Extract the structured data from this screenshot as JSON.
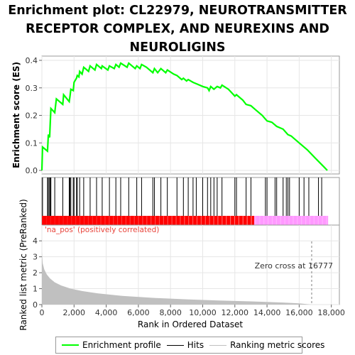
{
  "title": "Enrichment plot: CL22979, NEUROTRANSMITTER RECEPTOR COMPLEX, AND NEUREXINS AND NEUROLIGINS",
  "title_lines": [
    "Enrichment plot: CL22979, NEUROTRANSMITTER",
    "RECEPTOR COMPLEX, AND NEUREXINS AND",
    "NEUROLIGINS"
  ],
  "colors": {
    "es_line": "#00ff00",
    "hits": "#000000",
    "metric_fill": "#c0c0c0",
    "pos_bar": "#ff0000",
    "neg_bar": "#ff99ff",
    "zero_line": "#808080"
  },
  "chart_data": [
    {
      "type": "line",
      "name": "enrichment-profile",
      "ylabel": "Enrichment score (ES)",
      "ylim": [
        0,
        0.4
      ],
      "yticks": [
        0.0,
        0.1,
        0.2,
        0.3,
        0.4
      ],
      "ytick_labels": [
        "0.0",
        "0.1",
        "0.2",
        "0.3",
        "0.4"
      ],
      "xlim": [
        0,
        18500
      ],
      "points": [
        [
          0,
          0.0
        ],
        [
          40,
          0.085
        ],
        [
          350,
          0.07
        ],
        [
          400,
          0.13
        ],
        [
          480,
          0.12
        ],
        [
          520,
          0.175
        ],
        [
          560,
          0.225
        ],
        [
          800,
          0.21
        ],
        [
          900,
          0.26
        ],
        [
          1300,
          0.24
        ],
        [
          1350,
          0.275
        ],
        [
          1700,
          0.25
        ],
        [
          1750,
          0.27
        ],
        [
          1800,
          0.295
        ],
        [
          1950,
          0.29
        ],
        [
          2000,
          0.32
        ],
        [
          2150,
          0.335
        ],
        [
          2200,
          0.345
        ],
        [
          2300,
          0.34
        ],
        [
          2350,
          0.36
        ],
        [
          2500,
          0.35
        ],
        [
          2600,
          0.375
        ],
        [
          2900,
          0.36
        ],
        [
          3000,
          0.38
        ],
        [
          3300,
          0.365
        ],
        [
          3400,
          0.385
        ],
        [
          3700,
          0.37
        ],
        [
          3750,
          0.38
        ],
        [
          4100,
          0.365
        ],
        [
          4200,
          0.38
        ],
        [
          4500,
          0.37
        ],
        [
          4600,
          0.385
        ],
        [
          4800,
          0.375
        ],
        [
          4900,
          0.39
        ],
        [
          5300,
          0.375
        ],
        [
          5400,
          0.39
        ],
        [
          5800,
          0.37
        ],
        [
          5900,
          0.38
        ],
        [
          6100,
          0.37
        ],
        [
          6200,
          0.385
        ],
        [
          6500,
          0.375
        ],
        [
          6900,
          0.355
        ],
        [
          7000,
          0.37
        ],
        [
          7200,
          0.355
        ],
        [
          7400,
          0.37
        ],
        [
          7700,
          0.355
        ],
        [
          7800,
          0.365
        ],
        [
          8200,
          0.35
        ],
        [
          8400,
          0.345
        ],
        [
          8700,
          0.33
        ],
        [
          8800,
          0.335
        ],
        [
          9000,
          0.325
        ],
        [
          9100,
          0.33
        ],
        [
          9400,
          0.32
        ],
        [
          9600,
          0.315
        ],
        [
          10000,
          0.305
        ],
        [
          10300,
          0.3
        ],
        [
          10400,
          0.29
        ],
        [
          10500,
          0.305
        ],
        [
          10700,
          0.295
        ],
        [
          10900,
          0.305
        ],
        [
          11100,
          0.3
        ],
        [
          11200,
          0.31
        ],
        [
          11600,
          0.295
        ],
        [
          12000,
          0.27
        ],
        [
          12100,
          0.275
        ],
        [
          12500,
          0.255
        ],
        [
          12700,
          0.24
        ],
        [
          13000,
          0.235
        ],
        [
          13300,
          0.22
        ],
        [
          13700,
          0.2
        ],
        [
          14000,
          0.18
        ],
        [
          14300,
          0.175
        ],
        [
          14600,
          0.16
        ],
        [
          15000,
          0.15
        ],
        [
          15300,
          0.13
        ],
        [
          15500,
          0.125
        ],
        [
          16000,
          0.1
        ],
        [
          16500,
          0.075
        ],
        [
          17000,
          0.045
        ],
        [
          17500,
          0.015
        ],
        [
          17750,
          0.0
        ]
      ]
    },
    {
      "type": "scatter",
      "name": "hits",
      "xlim": [
        0,
        18500
      ],
      "x": [
        40,
        350,
        400,
        480,
        520,
        560,
        800,
        1300,
        1700,
        1750,
        1800,
        1950,
        2000,
        2150,
        2200,
        2350,
        2600,
        3000,
        3400,
        3750,
        4200,
        4600,
        4900,
        5400,
        5900,
        6200,
        6900,
        7000,
        7400,
        7800,
        8400,
        8800,
        9100,
        9400,
        9600,
        10000,
        10300,
        10500,
        10700,
        10900,
        11200,
        12000,
        12100,
        12700,
        13000,
        13900,
        14000,
        14500,
        14600,
        15000,
        15200,
        15300,
        15400,
        16000,
        16300,
        16600,
        17200,
        17400
      ]
    },
    {
      "type": "area",
      "name": "ranked-list-metric",
      "ylabel": "Ranked list metric (PreRanked)",
      "xlabel": "Rank in Ordered Dataset",
      "ylim": [
        0,
        4.5
      ],
      "yticks": [
        0,
        1,
        2,
        3,
        4
      ],
      "ytick_labels": [
        "0",
        "1",
        "2",
        "3",
        "4"
      ],
      "xlim": [
        0,
        18500
      ],
      "xticks": [
        0,
        2000,
        4000,
        6000,
        8000,
        10000,
        12000,
        14000,
        16000,
        18000
      ],
      "xtick_labels": [
        "0",
        "2,000",
        "4,000",
        "6,000",
        "8,000",
        "10,000",
        "12,000",
        "14,000",
        "16,000",
        "18,000"
      ],
      "points": [
        [
          0,
          3.3
        ],
        [
          50,
          2.6
        ],
        [
          150,
          2.2
        ],
        [
          300,
          1.9
        ],
        [
          500,
          1.65
        ],
        [
          800,
          1.4
        ],
        [
          1200,
          1.2
        ],
        [
          1800,
          1.0
        ],
        [
          2500,
          0.85
        ],
        [
          3500,
          0.7
        ],
        [
          5000,
          0.55
        ],
        [
          7000,
          0.42
        ],
        [
          9000,
          0.33
        ],
        [
          11000,
          0.26
        ],
        [
          13000,
          0.2
        ],
        [
          15000,
          0.13
        ],
        [
          16000,
          0.08
        ],
        [
          16777,
          0.0
        ],
        [
          17800,
          0.0
        ]
      ],
      "zero_cross_x": 16777,
      "zero_cross_label": "Zero cross at 16777"
    }
  ],
  "bar": {
    "pos_label": "'na_pos' (positively correlated)",
    "split_x": 13200,
    "end_x": 17800
  },
  "legend": {
    "items": [
      {
        "label": "Enrichment profile",
        "color": "#00ff00"
      },
      {
        "label": "Hits",
        "color": "#000000"
      },
      {
        "label": "Ranking metric scores",
        "color": "#c0c0c0"
      }
    ]
  }
}
